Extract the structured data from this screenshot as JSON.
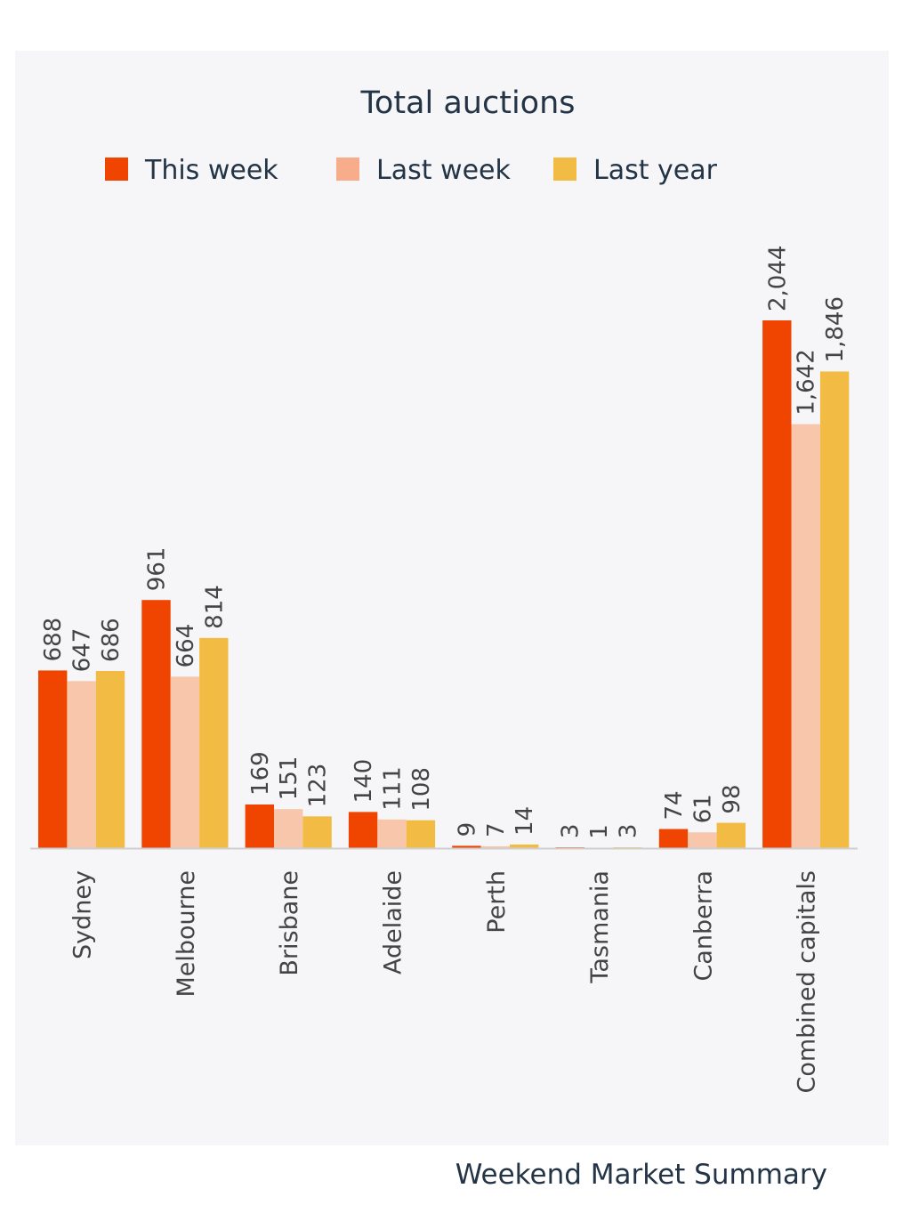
{
  "chart_data": {
    "type": "bar",
    "title": "Total auctions",
    "categories": [
      "Sydney",
      "Melbourne",
      "Brisbane",
      "Adelaide",
      "Perth",
      "Tasmania",
      "Canberra",
      "Combined capitals"
    ],
    "series": [
      {
        "name": "This week",
        "color": "#f04500",
        "values": [
          688,
          961,
          169,
          140,
          9,
          3,
          74,
          2044
        ],
        "labels": [
          "688",
          "961",
          "169",
          "140",
          "9",
          "3",
          "74",
          "2,044"
        ]
      },
      {
        "name": "Last week",
        "color": "#f7c6ab",
        "values": [
          647,
          664,
          151,
          111,
          7,
          1,
          61,
          1642
        ],
        "labels": [
          "647",
          "664",
          "151",
          "111",
          "7",
          "1",
          "61",
          "1,642"
        ]
      },
      {
        "name": "Last year",
        "color": "#f2bc44",
        "values": [
          686,
          814,
          123,
          108,
          14,
          3,
          98,
          1846
        ],
        "labels": [
          "686",
          "814",
          "123",
          "108",
          "14",
          "3",
          "98",
          "1,846"
        ]
      }
    ],
    "legend_swatches": {
      "This week": "#f04500",
      "Last week": "#f8ad8a",
      "Last year": "#f2bc44"
    },
    "ylim": [
      0,
      2044
    ],
    "grid": false,
    "legend_position": "top"
  },
  "footer": "Weekend Market Summary"
}
